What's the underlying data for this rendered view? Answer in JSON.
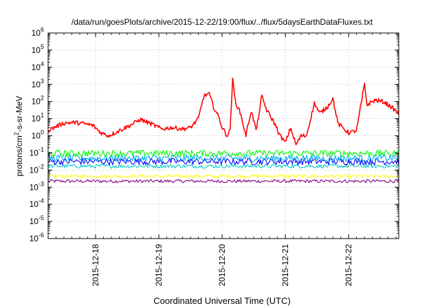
{
  "chart_data": {
    "type": "line",
    "title": "/data/run/goesPlots/archive/2015-12-22/19:00/flux/../flux/5daysEarthDataFluxes.txt",
    "xlabel": "Coordinated Universal Time (UTC)",
    "ylabel_prefix": "protons/cm",
    "ylabel_exp": "2",
    "ylabel_suffix": "-s-sr-MeV",
    "xlim": [
      "2015-12-17 06:00",
      "2015-12-22 19:00"
    ],
    "x_ticks": [
      "2015-12-18",
      "2015-12-19",
      "2015-12-20",
      "2015-12-21",
      "2015-12-22"
    ],
    "y_scale": "log",
    "ylim": [
      1e-06,
      1000000.0
    ],
    "y_tick_exponents": [
      "-6",
      "-5",
      "-4",
      "-3",
      "-2",
      "-1",
      "0",
      "1",
      "2",
      "3",
      "4",
      "5",
      "6"
    ],
    "grid": true,
    "series": [
      {
        "color": "#ff0000",
        "x": [
          "2015-12-17 06:00",
          "2015-12-17 09:00",
          "2015-12-17 12:00",
          "2015-12-17 16:00",
          "2015-12-17 20:00",
          "2015-12-17 23:00",
          "2015-12-18 02:00",
          "2015-12-18 05:00",
          "2015-12-18 09:00",
          "2015-12-18 13:00",
          "2015-12-18 17:00",
          "2015-12-18 21:00",
          "2015-12-19 01:00",
          "2015-12-19 05:00",
          "2015-12-19 09:00",
          "2015-12-19 12:00",
          "2015-12-19 15:00",
          "2015-12-19 17:00",
          "2015-12-19 19:00",
          "2015-12-19 21:00",
          "2015-12-19 23:00",
          "2015-12-20 00:00",
          "2015-12-20 02:00",
          "2015-12-20 03:00",
          "2015-12-20 04:00",
          "2015-12-20 05:00",
          "2015-12-20 07:00",
          "2015-12-20 09:00",
          "2015-12-20 11:00",
          "2015-12-20 13:00",
          "2015-12-20 15:00",
          "2015-12-20 17:00",
          "2015-12-20 20:00",
          "2015-12-20 22:00",
          "2015-12-21 00:00",
          "2015-12-21 02:00",
          "2015-12-21 04:00",
          "2015-12-21 06:00",
          "2015-12-21 08:00",
          "2015-12-21 11:00",
          "2015-12-21 13:00",
          "2015-12-21 16:00",
          "2015-12-21 18:00",
          "2015-12-21 20:00",
          "2015-12-22 00:00",
          "2015-12-22 03:00",
          "2015-12-22 06:00",
          "2015-12-22 07:00",
          "2015-12-22 08:00",
          "2015-12-22 10:00",
          "2015-12-22 13:00",
          "2015-12-22 16:00",
          "2015-12-22 19:00"
        ],
        "values": [
          2,
          3.5,
          5.5,
          6,
          5,
          4,
          1.5,
          1,
          2,
          4,
          9,
          5,
          2.5,
          3,
          2.5,
          3,
          10,
          200,
          300,
          40,
          10,
          3,
          1,
          2,
          2000,
          100,
          20,
          1,
          30,
          2,
          200,
          30,
          5,
          1,
          0.4,
          3,
          0.3,
          1,
          1,
          80,
          20,
          50,
          150,
          5,
          1.5,
          2,
          1000,
          60,
          80,
          120,
          100,
          50,
          20
        ]
      },
      {
        "color": "#00ff00",
        "band": [
          0.06,
          0.15
        ]
      },
      {
        "color": "#00aaff",
        "band": [
          0.03,
          0.08
        ]
      },
      {
        "color": "#0000ff",
        "band": [
          0.02,
          0.05
        ]
      },
      {
        "color": "#00cccc",
        "band": [
          0.013,
          0.022
        ]
      },
      {
        "color": "#ffff00",
        "band": [
          0.0035,
          0.0055
        ]
      },
      {
        "color": "#800080",
        "band": [
          0.0018,
          0.0028
        ]
      }
    ]
  }
}
